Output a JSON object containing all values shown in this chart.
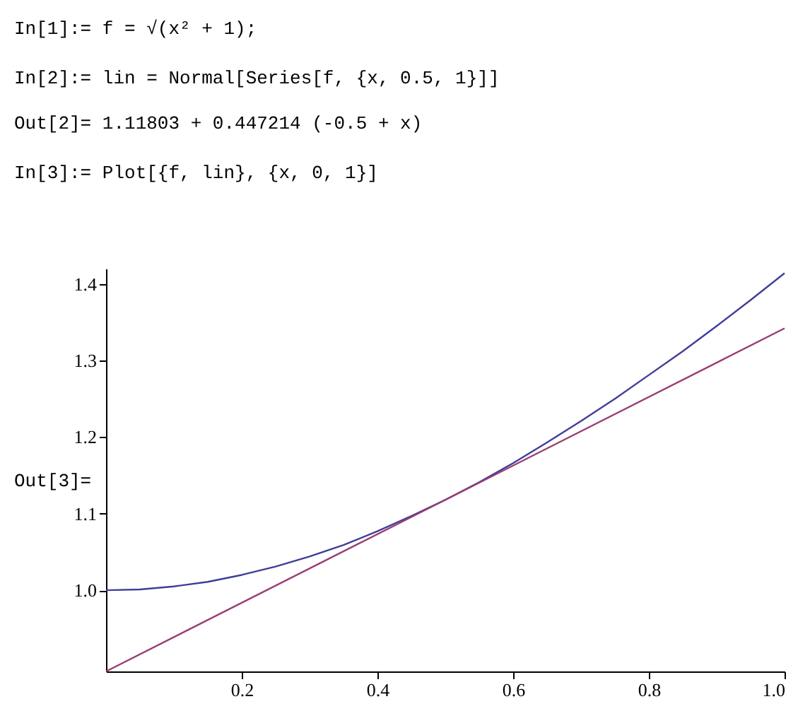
{
  "chart_data": {
    "type": "line",
    "annotations": [
      "In[1]:=  f = √(x² + 1);",
      "In[2]:=  lin = Normal[Series[f, {x, 0.5, 1}]]",
      "Out[2]=  1.11803 + 0.447214 (-0.5 + x)",
      "In[3]:=  Plot[{f, lin}, {x, 0, 1}]",
      "Out[3]="
    ],
    "series": [
      {
        "color": "#3f3d99",
        "x": [
          0,
          0.05,
          0.1,
          0.15,
          0.2,
          0.25,
          0.3,
          0.35,
          0.4,
          0.45,
          0.5,
          0.55,
          0.6,
          0.65,
          0.7,
          0.75,
          0.8,
          0.85,
          0.9,
          0.95,
          1
        ],
        "values": [
          1.0,
          1.001,
          1.005,
          1.011,
          1.02,
          1.031,
          1.044,
          1.059,
          1.077,
          1.097,
          1.118,
          1.141,
          1.166,
          1.193,
          1.221,
          1.25,
          1.281,
          1.312,
          1.345,
          1.379,
          1.414
        ]
      },
      {
        "color": "#993d71",
        "x": [
          0,
          1
        ],
        "values": [
          0.894,
          1.342
        ]
      }
    ],
    "xlim": [
      0,
      1
    ],
    "ylim": [
      0.894,
      1.42
    ],
    "xticks": [
      0.2,
      0.4,
      0.6,
      0.8,
      {
        "value": 1,
        "label": "1.0"
      }
    ],
    "yticks": [
      {
        "value": 1,
        "label": "1.0"
      },
      1.1,
      1.2,
      1.3,
      1.4
    ],
    "grid": false,
    "line_style": "solid"
  }
}
